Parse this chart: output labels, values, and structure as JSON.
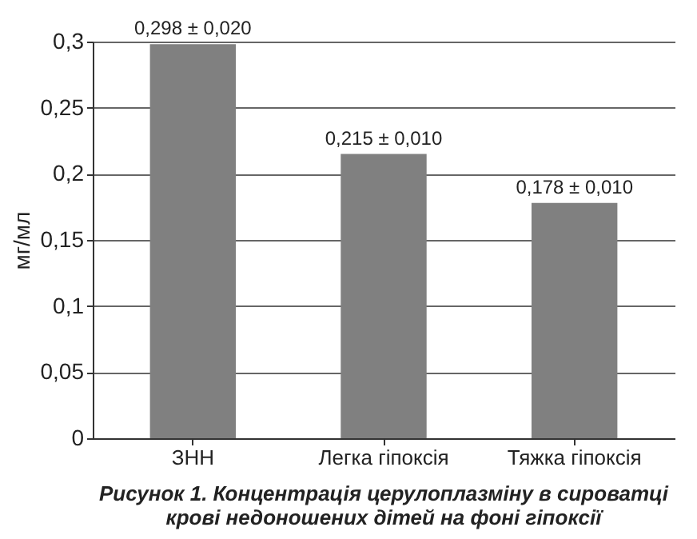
{
  "chart_data": {
    "type": "bar",
    "title": "Рисунок 1. Концентрація церулоплазміну в сироватці крові недоношених дітей на фоні гіпоксії",
    "ylabel": "мг/мл",
    "categories": [
      "ЗНН",
      "Легка гіпоксія",
      "Тяжка гіпоксія"
    ],
    "values": [
      0.298,
      0.215,
      0.178
    ],
    "color": "#808080",
    "value_labels": [
      "0,298 ± 0,020",
      "0,215 ± 0,010",
      "0,178 ± 0,010"
    ],
    "ylim": [
      0,
      0.3
    ],
    "yticks": [
      {
        "value": 0,
        "label": "0"
      },
      {
        "value": 0.05,
        "label": "0,05"
      },
      {
        "value": 0.1,
        "label": "0,1"
      },
      {
        "value": 0.15,
        "label": "0,15"
      },
      {
        "value": 0.2,
        "label": "0,2"
      },
      {
        "value": 0.25,
        "label": "0,25"
      },
      {
        "value": 0.3,
        "label": "0,3"
      }
    ],
    "grid": "y"
  }
}
